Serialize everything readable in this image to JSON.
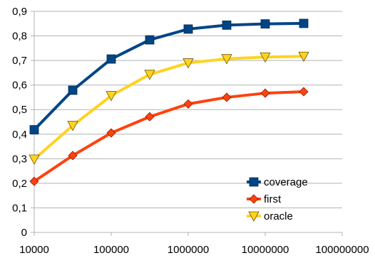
{
  "chart_data": {
    "type": "line",
    "xscale": "log",
    "x": [
      10000,
      31623,
      100000,
      316228,
      1000000,
      3162278,
      10000000,
      31622777
    ],
    "xlim": [
      10000,
      100000000
    ],
    "xticks": [
      "10000",
      "100000",
      "1000000",
      "10000000",
      "100000000"
    ],
    "ylim": [
      0,
      0.9
    ],
    "yticks": [
      "0",
      "0,1",
      "0,2",
      "0,3",
      "0,4",
      "0,5",
      "0,6",
      "0,7",
      "0,8",
      "0,9"
    ],
    "grid": "horizontal",
    "legend_position": "bottom-right",
    "series": [
      {
        "name": "coverage",
        "color": "#004586",
        "marker": "square",
        "values": [
          0.418,
          0.579,
          0.706,
          0.784,
          0.828,
          0.844,
          0.849,
          0.851
        ]
      },
      {
        "name": "first",
        "color": "#ff420e",
        "marker": "diamond",
        "values": [
          0.208,
          0.313,
          0.405,
          0.471,
          0.523,
          0.55,
          0.567,
          0.573
        ]
      },
      {
        "name": "oracle",
        "color": "#ffd320",
        "marker": "triangle-down",
        "values": [
          0.298,
          0.435,
          0.557,
          0.643,
          0.69,
          0.707,
          0.714,
          0.717
        ]
      }
    ]
  }
}
